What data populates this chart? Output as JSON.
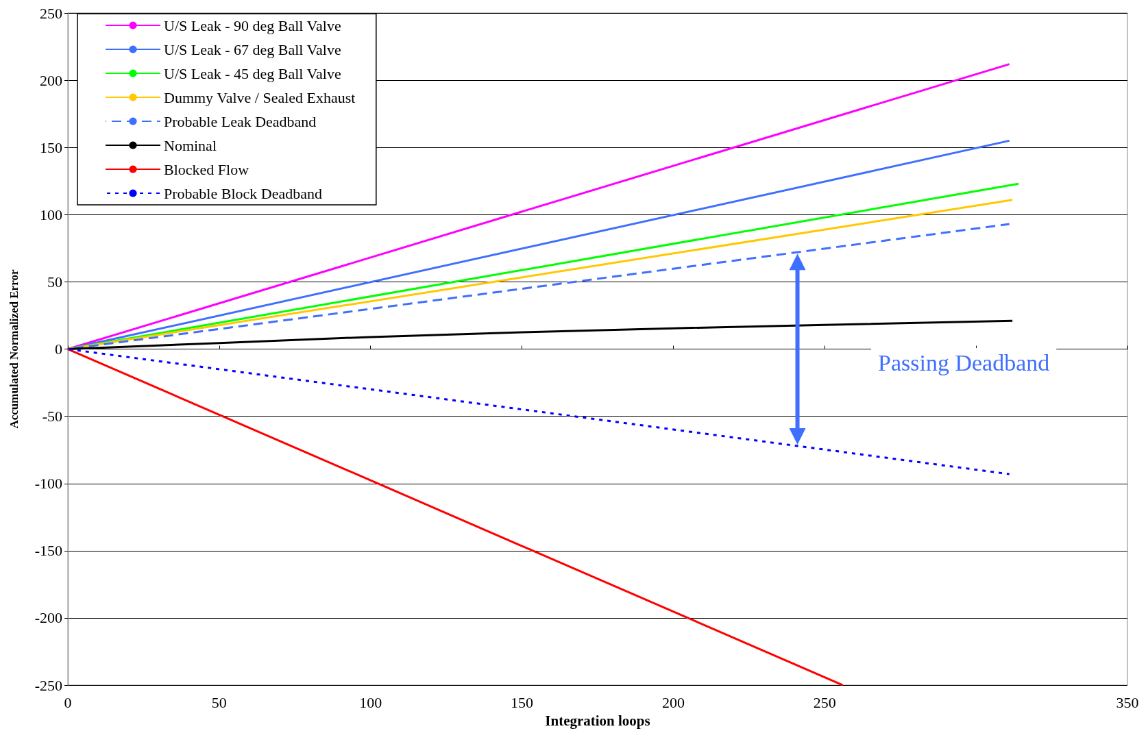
{
  "chart_data": {
    "type": "line",
    "xlabel": "Integration loops",
    "ylabel": "Accumulated Normalized Error",
    "xlim": [
      0,
      350
    ],
    "xticks": [
      0,
      50,
      100,
      150,
      200,
      250,
      {
        "value": 300,
        "label": null
      },
      350
    ],
    "ylim": [
      -250,
      250
    ],
    "yticks": [
      -250,
      -200,
      -150,
      -100,
      -50,
      0,
      50,
      100,
      150,
      200,
      250
    ],
    "grid": "y",
    "legend": "top left",
    "marker": "none",
    "annotations": [
      "Passing Deadband"
    ],
    "series": [
      {
        "name": "U/S Leak - 90 deg Ball Valve",
        "color": "#ff00ff",
        "x": [
          0,
          311
        ],
        "values": [
          0,
          212
        ]
      },
      {
        "name": "U/S Leak - 67 deg Ball Valve",
        "color": "#3f6fff",
        "x": [
          0,
          311
        ],
        "values": [
          0,
          155
        ]
      },
      {
        "name": "U/S Leak - 45 deg Ball Valve",
        "color": "#00ff00",
        "x": [
          0,
          314
        ],
        "values": [
          0,
          123
        ]
      },
      {
        "name": "Dummy Valve / Sealed Exhaust",
        "color": "#ffc800",
        "x": [
          0,
          312
        ],
        "values": [
          0,
          111
        ]
      },
      {
        "name": "Probable Leak Deadband",
        "color": "#3f6fff",
        "line_style": "dashed",
        "x": [
          0,
          311
        ],
        "values": [
          0,
          93
        ]
      },
      {
        "name": "Nominal",
        "color": "#000000",
        "x": [
          0,
          50,
          100,
          150,
          200,
          250,
          312
        ],
        "values": [
          0,
          4.5,
          9,
          12.5,
          15.5,
          18,
          21
        ]
      },
      {
        "name": "Blocked Flow",
        "color": "#ff0000",
        "x": [
          0,
          256
        ],
        "values": [
          0,
          -250
        ]
      },
      {
        "name": "Probable Block Deadband",
        "color": "#0000ff",
        "line_style": "dotted",
        "x": [
          0,
          311
        ],
        "values": [
          0,
          -93
        ]
      }
    ]
  }
}
